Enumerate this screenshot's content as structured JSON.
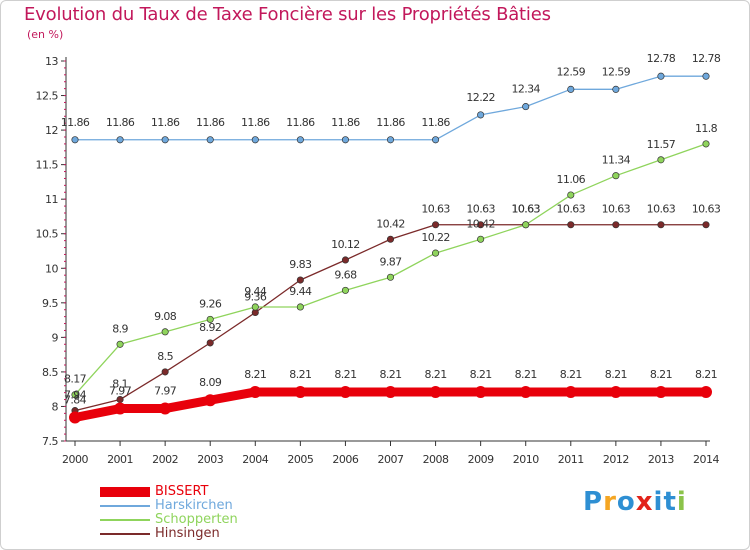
{
  "header": {
    "title": "Evolution du Taux de Taxe Foncière sur les Propriétés Bâties",
    "unit": "(en %)"
  },
  "logo": {
    "text": "Proxiti",
    "letters": [
      "P",
      "r",
      "o",
      "x",
      "i",
      "t",
      "i"
    ],
    "colors": [
      "#2e8fd3",
      "#f5a623",
      "#2e8fd3",
      "#e2231a",
      "#2e8fd3",
      "#2e8fd3",
      "#8bc34a"
    ]
  },
  "chart_data": {
    "type": "line",
    "title": "Evolution du Taux de Taxe Foncière sur les Propriétés Bâties",
    "ylabel": "(en %)",
    "xlabel": "",
    "x": [
      "2000",
      "2001",
      "2002",
      "2003",
      "2004",
      "2005",
      "2006",
      "2007",
      "2008",
      "2009",
      "2010",
      "2011",
      "2012",
      "2013",
      "2014"
    ],
    "ylim": [
      7.5,
      13
    ],
    "yticks": [
      "7.5",
      "8",
      "8.5",
      "9",
      "9.5",
      "10",
      "10.5",
      "11",
      "11.5",
      "12",
      "12.5",
      "13"
    ],
    "grid": false,
    "legend_position": "bottom-left",
    "series": [
      {
        "name": "BISSERT",
        "color": "#e8000b",
        "values": [
          7.84,
          7.97,
          7.97,
          8.09,
          8.21,
          8.21,
          8.21,
          8.21,
          8.21,
          8.21,
          8.21,
          8.21,
          8.21,
          8.21,
          8.21
        ],
        "labels": [
          "7.84",
          "7.97",
          "7.97",
          "8.09",
          "8.21",
          "8.21",
          "8.21",
          "8.21",
          "8.21",
          "8.21",
          "8.21",
          "8.21",
          "8.21",
          "8.21",
          "8.21"
        ]
      },
      {
        "name": "Harskirchen",
        "color": "#6fa8dc",
        "values": [
          11.86,
          11.86,
          11.86,
          11.86,
          11.86,
          11.86,
          11.86,
          11.86,
          11.86,
          12.22,
          12.34,
          12.59,
          12.59,
          12.78,
          12.78
        ],
        "labels": [
          "11.86",
          "11.86",
          "11.86",
          "11.86",
          "11.86",
          "11.86",
          "11.86",
          "11.86",
          "11.86",
          "12.22",
          "12.34",
          "12.59",
          "12.59",
          "12.78",
          "12.78"
        ]
      },
      {
        "name": "Schopperten",
        "color": "#8fd45c",
        "values": [
          8.17,
          8.9,
          9.08,
          9.26,
          9.44,
          9.44,
          9.68,
          9.87,
          10.22,
          10.42,
          10.63,
          11.06,
          11.34,
          11.57,
          11.8
        ],
        "labels": [
          "8.17",
          "8.9",
          "9.08",
          "9.26",
          "9.44",
          "9.44",
          "9.68",
          "9.87",
          "10.22",
          "10.42",
          "10.63",
          "11.06",
          "11.34",
          "11.57",
          "11.8"
        ]
      },
      {
        "name": "Hinsingen",
        "color": "#7b2a2a",
        "values": [
          7.94,
          8.1,
          8.5,
          8.92,
          9.36,
          9.83,
          10.12,
          10.42,
          10.63,
          10.63,
          10.63,
          10.63,
          10.63,
          10.63,
          10.63
        ],
        "labels": [
          "7.94",
          "8.1",
          "8.5",
          "8.92",
          "9.36",
          "9.83",
          "10.12",
          "10.42",
          "10.63",
          "10.63",
          "10.63",
          "10.63",
          "10.63",
          "10.63",
          "10.63"
        ]
      }
    ]
  }
}
